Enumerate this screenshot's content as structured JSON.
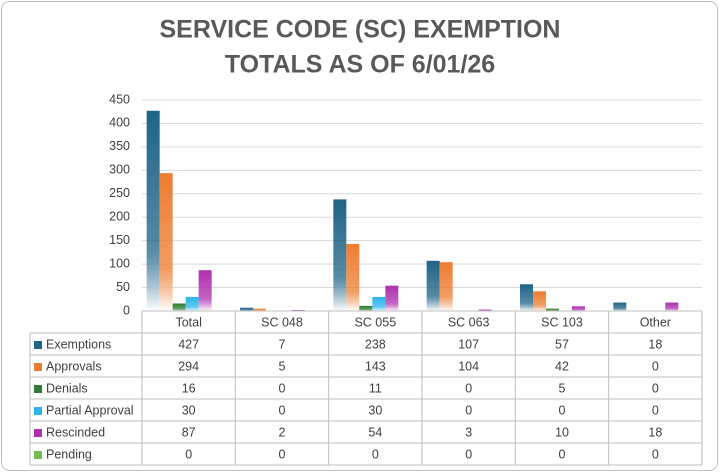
{
  "chart_data": {
    "type": "bar",
    "title_lines": [
      "SERVICE CODE (SC) EXEMPTION",
      "TOTALS AS OF  6/01/26"
    ],
    "categories": [
      "Total",
      "SC 048",
      "SC 055",
      "SC 063",
      "SC 103",
      "Other"
    ],
    "series": [
      {
        "name": "Exemptions",
        "color": "#1f6487",
        "values": [
          427,
          7,
          238,
          107,
          57,
          18
        ]
      },
      {
        "name": "Approvals",
        "color": "#ed7d31",
        "values": [
          294,
          5,
          143,
          104,
          42,
          0
        ]
      },
      {
        "name": "Denials",
        "color": "#2e7d32",
        "values": [
          16,
          0,
          11,
          0,
          5,
          0
        ]
      },
      {
        "name": "Partial Approval",
        "color": "#29b6e8",
        "values": [
          30,
          0,
          30,
          0,
          0,
          0
        ]
      },
      {
        "name": "Rescinded",
        "color": "#b030b0",
        "values": [
          87,
          2,
          54,
          3,
          10,
          18
        ]
      },
      {
        "name": "Pending",
        "color": "#70c050",
        "values": [
          0,
          0,
          0,
          0,
          0,
          0
        ]
      }
    ],
    "ylim": [
      0,
      450
    ],
    "yticks": [
      0,
      50,
      100,
      150,
      200,
      250,
      300,
      350,
      400,
      450
    ],
    "grid": true
  }
}
